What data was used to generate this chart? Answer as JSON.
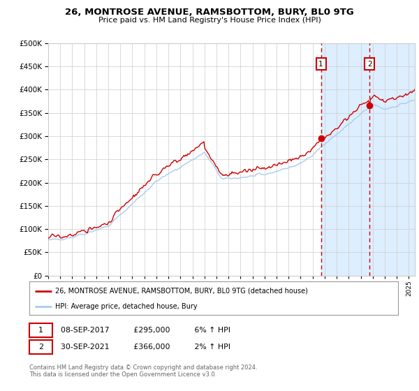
{
  "title": "26, MONTROSE AVENUE, RAMSBOTTOM, BURY, BL0 9TG",
  "subtitle": "Price paid vs. HM Land Registry's House Price Index (HPI)",
  "legend_line1": "26, MONTROSE AVENUE, RAMSBOTTOM, BURY, BL0 9TG (detached house)",
  "legend_line2": "HPI: Average price, detached house, Bury",
  "annotation1_date": "08-SEP-2017",
  "annotation1_price_str": "£295,000",
  "annotation1_price": 295000,
  "annotation1_hpi": "6% ↑ HPI",
  "annotation2_date": "30-SEP-2021",
  "annotation2_price_str": "£366,000",
  "annotation2_price": 366000,
  "annotation2_hpi": "2% ↑ HPI",
  "sale1_year": 2017.69,
  "sale2_year": 2021.75,
  "hpi_color": "#aaccee",
  "price_color": "#cc0000",
  "background_color": "#ffffff",
  "highlight_bg_color": "#ddeeff",
  "grid_color": "#cccccc",
  "footer": "Contains HM Land Registry data © Crown copyright and database right 2024.\nThis data is licensed under the Open Government Licence v3.0.",
  "ylim": [
    0,
    500000
  ],
  "xmin": 1995.0,
  "xmax": 2025.5
}
